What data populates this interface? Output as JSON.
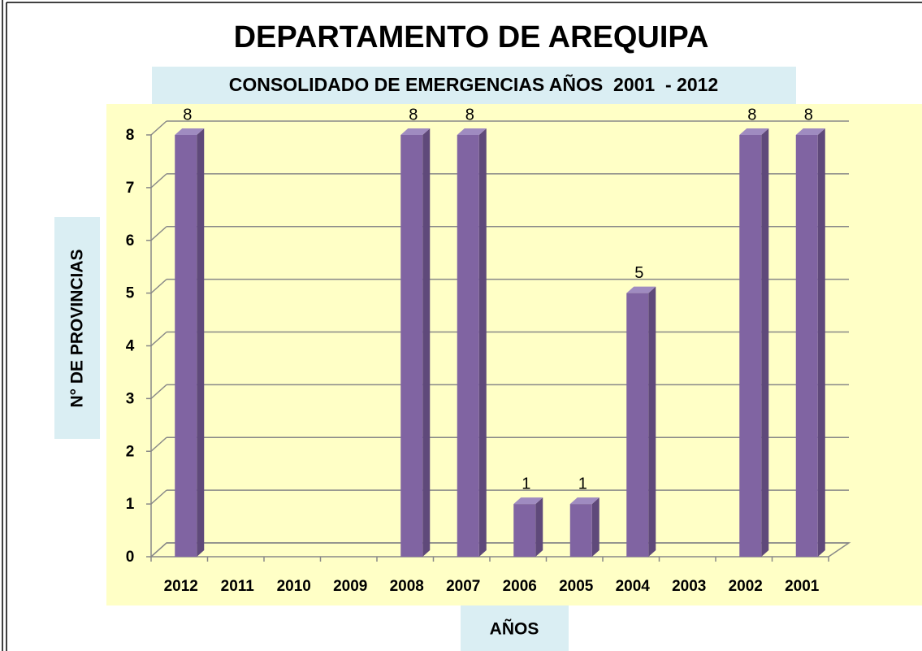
{
  "chart_data": {
    "type": "bar",
    "title": "DEPARTAMENTO DE AREQUIPA",
    "subtitle": "CONSOLIDADO DE EMERGENCIAS AÑOS  2001  - 2012",
    "x_label": "AÑOS",
    "y_label": "N° DE PROVINCIAS",
    "categories": [
      "2012",
      "2011",
      "2010",
      "2009",
      "2008",
      "2007",
      "2006",
      "2005",
      "2004",
      "2003",
      "2002",
      "2001"
    ],
    "values": [
      8,
      0,
      0,
      0,
      8,
      8,
      1,
      1,
      5,
      0,
      8,
      8
    ],
    "color": "#8064a2",
    "ylim": [
      0,
      8
    ],
    "yticks": [
      0,
      1,
      2,
      3,
      4,
      5,
      6,
      7,
      8
    ],
    "grid": true
  }
}
